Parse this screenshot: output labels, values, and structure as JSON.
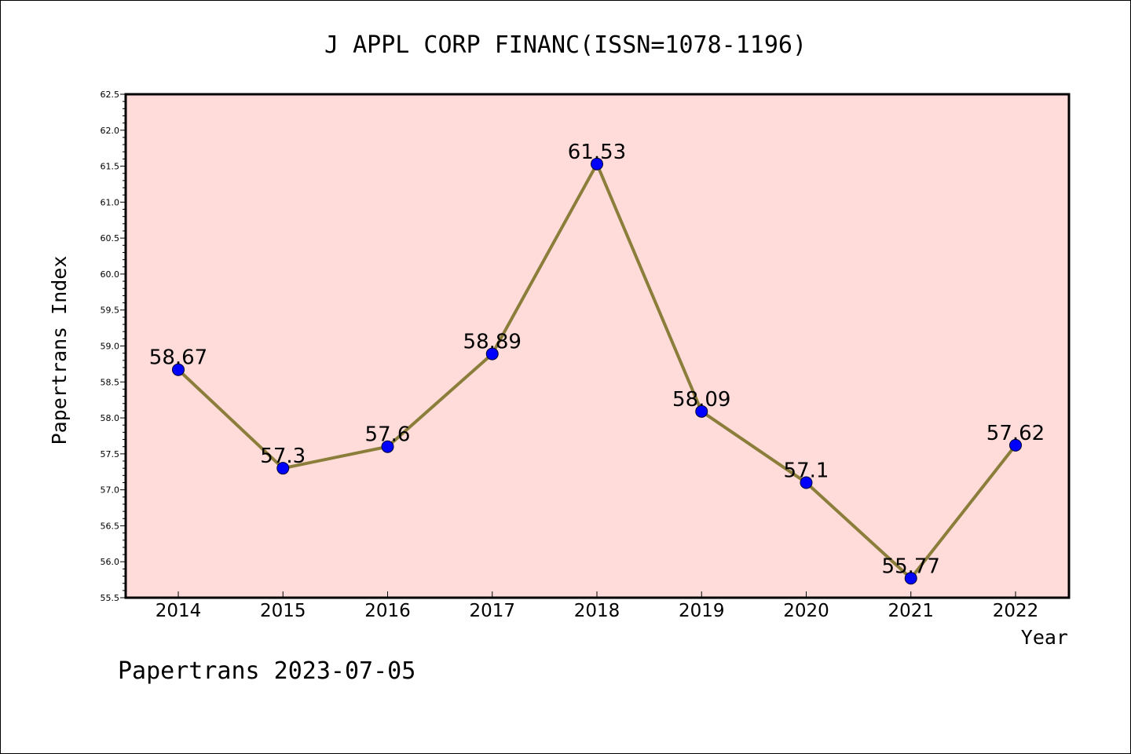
{
  "chart_data": {
    "type": "line",
    "title": "J APPL CORP FINANC(ISSN=1078-1196)",
    "xlabel": "Year",
    "ylabel": "Papertrans Index",
    "categories": [
      "2014",
      "2015",
      "2016",
      "2017",
      "2018",
      "2019",
      "2020",
      "2021",
      "2022"
    ],
    "series": [
      {
        "values": [
          58.67,
          57.3,
          57.6,
          58.89,
          61.53,
          58.09,
          57.1,
          55.77,
          57.62
        ],
        "data_labels": [
          "58.67",
          "57.3",
          "57.6",
          "58.89",
          "61.53",
          "58.09",
          "57.1",
          "55.77",
          "57.62"
        ],
        "line_color": "#8B7D3A",
        "marker_color": "#0000FF"
      }
    ],
    "ylim": [
      55.5,
      62.5
    ],
    "yticks": [
      "55.5",
      "56.0",
      "56.5",
      "57.0",
      "57.5",
      "58.0",
      "58.5",
      "59.0",
      "59.5",
      "60.0",
      "60.5",
      "61.0",
      "61.5",
      "62.0",
      "62.5"
    ],
    "plot_background": "#FFDCDA",
    "grid": false,
    "footer": "Papertrans 2023-07-05"
  }
}
